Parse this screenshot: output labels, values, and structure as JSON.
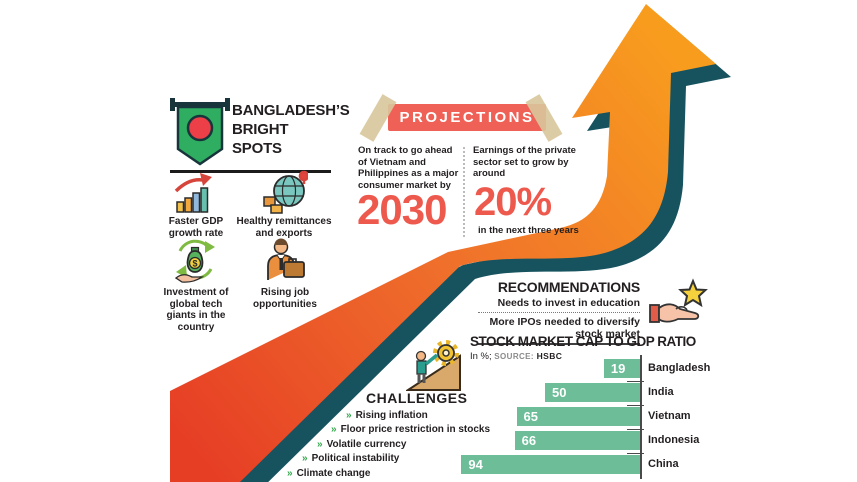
{
  "header": {
    "title_lines": [
      "BANGLADESH’S",
      "BRIGHT",
      "SPOTS"
    ]
  },
  "bright_spots": {
    "items": [
      {
        "icon": "gdp-growth-icon",
        "label": "Faster GDP growth rate"
      },
      {
        "icon": "globe-exports-icon",
        "label": "Healthy remittances and exports"
      },
      {
        "icon": "investment-icon",
        "label": "Investment of global tech giants in the country"
      },
      {
        "icon": "jobs-icon",
        "label": "Rising job opportunities"
      }
    ],
    "dollar_sign": "$"
  },
  "projections": {
    "banner_label": "PROJECTIONS",
    "left": {
      "text": "On track to go ahead of Vietnam and Philippines as a major consumer market by",
      "value": "2030"
    },
    "right": {
      "text": "Earnings of the private sector set to grow by around",
      "value": "20%",
      "suffix": "in the next three years"
    }
  },
  "recommendations": {
    "title": "RECOMMENDATIONS",
    "items": [
      "Needs to invest in education",
      "More IPOs needed to diversify stock market"
    ]
  },
  "challenges": {
    "title": "CHALLENGES",
    "bullet": "»",
    "items": [
      "Rising inflation",
      "Floor price restriction in stocks",
      "Volatile currency",
      "Political instability",
      "Climate change"
    ]
  },
  "chart_data": {
    "type": "bar",
    "orientation": "horizontal-right-aligned",
    "title": "STOCK MARKET CAP TO GDP RATIO",
    "units_note": "In %;",
    "source_label": "SOURCE:",
    "source": "HSBC",
    "categories": [
      "Bangladesh",
      "India",
      "Vietnam",
      "Indonesia",
      "China"
    ],
    "values": [
      19,
      50,
      65,
      66,
      94
    ],
    "xlim": [
      0,
      100
    ],
    "legend": "none",
    "grid": "off",
    "bar_color": "#6cbd98",
    "value_label_color": "#ffffff"
  },
  "colors": {
    "arrow_red": "#e8432a",
    "arrow_orange": "#f89c1e",
    "arrow_shadow_teal": "#17535f",
    "accent_salmon": "#ee594e",
    "ribbon": "#ef6156",
    "tape": "#d8c69c",
    "bullet_green": "#33a64c",
    "bar_green": "#6cbd98",
    "flag_green": "#2fae62",
    "flag_red": "#ed3f47"
  }
}
